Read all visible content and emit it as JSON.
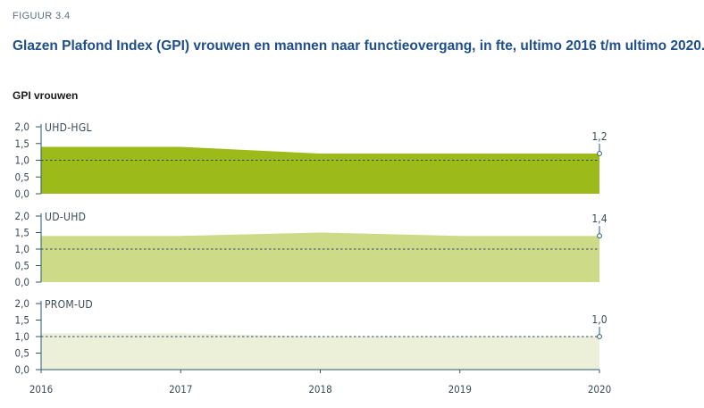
{
  "figure": {
    "label": "FIGUUR 3.4",
    "title": "Glazen Plafond Index (GPI) vrouwen en mannen naar functieovergang, in fte, ultimo 2016 t/m ultimo 2020.",
    "subtitle": "GPI vrouwen"
  },
  "chart_data": {
    "type": "area",
    "x": [
      "2016",
      "2017",
      "2018",
      "2019",
      "2020"
    ],
    "ylim": [
      0,
      2.0
    ],
    "yticks": [
      "0,0",
      "0,5",
      "1,0",
      "1,5",
      "2,0"
    ],
    "reference_line": 1.0,
    "series": [
      {
        "name": "UHD-HGL",
        "values": [
          1.4,
          1.4,
          1.2,
          1.2,
          1.2
        ],
        "end_label": "1,2",
        "color": "#9cbb1a"
      },
      {
        "name": "UD-UHD",
        "values": [
          1.4,
          1.4,
          1.5,
          1.4,
          1.4
        ],
        "end_label": "1,4",
        "color": "#cddb88"
      },
      {
        "name": "PROM-UD",
        "values": [
          1.1,
          1.1,
          1.0,
          1.0,
          1.0
        ],
        "end_label": "1,0",
        "color": "#ecf0d8"
      }
    ],
    "colors": {
      "axis": "#2b5a72",
      "reference": "#2b4a66",
      "text": "#3a4a54"
    }
  }
}
